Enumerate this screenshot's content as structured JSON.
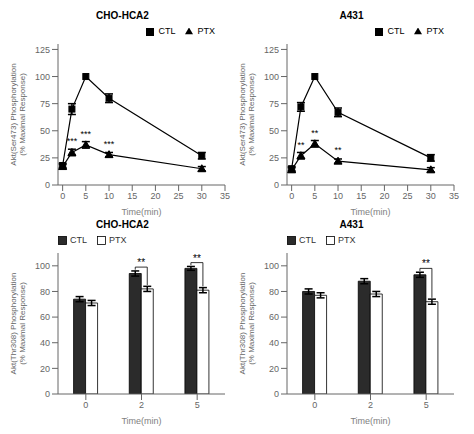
{
  "chart_data": [
    {
      "type": "line",
      "title": "CHO-HCA2",
      "xlabel": "Time(min)",
      "ylabel": "Akt(Ser473) Phosphorylation\n(% Maximal Response)",
      "x": [
        0,
        2,
        5,
        10,
        30
      ],
      "series": [
        {
          "name": "CTL",
          "color": "#000000",
          "marker": "square",
          "values": [
            18,
            70,
            100,
            80,
            27
          ],
          "errors": [
            2,
            5,
            0,
            4,
            3
          ]
        },
        {
          "name": "PTX",
          "color": "#000000",
          "marker": "triangle",
          "values": [
            17,
            30,
            37,
            28,
            15
          ],
          "errors": [
            2,
            3,
            3,
            2,
            2
          ]
        }
      ],
      "annotations": [
        {
          "series": "PTX",
          "x": 2,
          "text": "***"
        },
        {
          "series": "PTX",
          "x": 5,
          "text": "***"
        },
        {
          "series": "PTX",
          "x": 10,
          "text": "***"
        }
      ],
      "xlim": [
        -1,
        35
      ],
      "ylim": [
        0,
        130
      ],
      "xticks": [
        0,
        5,
        10,
        15,
        20,
        25,
        30,
        35
      ],
      "yticks": [
        0,
        25,
        50,
        75,
        100,
        125
      ],
      "grid": false,
      "legend": "upper right"
    },
    {
      "type": "line",
      "title": "A431",
      "xlabel": "Time(min)",
      "ylabel": "Akt(Ser473) Phosphorylation\n(% Maximal Response)",
      "x": [
        0,
        2,
        5,
        10,
        30
      ],
      "series": [
        {
          "name": "CTL",
          "color": "#000000",
          "marker": "square",
          "values": [
            15,
            72,
            100,
            67,
            25
          ],
          "errors": [
            2,
            4,
            0,
            4,
            3
          ]
        },
        {
          "name": "PTX",
          "color": "#000000",
          "marker": "triangle",
          "values": [
            14,
            27,
            38,
            22,
            14
          ],
          "errors": [
            2,
            3,
            3,
            2,
            2
          ]
        }
      ],
      "annotations": [
        {
          "series": "PTX",
          "x": 2,
          "text": "**"
        },
        {
          "series": "PTX",
          "x": 5,
          "text": "**"
        },
        {
          "series": "PTX",
          "x": 10,
          "text": "**"
        }
      ],
      "xlim": [
        -1,
        35
      ],
      "ylim": [
        0,
        130
      ],
      "xticks": [
        0,
        5,
        10,
        15,
        20,
        25,
        30,
        35
      ],
      "yticks": [
        0,
        25,
        50,
        75,
        100,
        125
      ],
      "grid": false,
      "legend": "upper right"
    },
    {
      "type": "bar",
      "title": "CHO-HCA2",
      "xlabel": "Time(min)",
      "ylabel": "Akt(Thr308) Phosphorylation\n(% Maximal Response)",
      "categories": [
        "0",
        "2",
        "5"
      ],
      "series": [
        {
          "name": "CTL",
          "color": "#2b2b2b",
          "values": [
            74,
            94,
            98
          ],
          "errors": [
            2,
            2,
            1.5
          ]
        },
        {
          "name": "PTX",
          "color": "#ffffff",
          "values": [
            71,
            82,
            81
          ],
          "errors": [
            2,
            2,
            2
          ]
        }
      ],
      "annotations": [
        {
          "category": "2",
          "text": "**"
        },
        {
          "category": "5",
          "text": "**"
        }
      ],
      "ylim": [
        0,
        110
      ],
      "yticks": [
        0,
        20,
        40,
        60,
        80,
        100
      ],
      "grid": false,
      "legend": "upper left"
    },
    {
      "type": "bar",
      "title": "A431",
      "xlabel": "Time(min)",
      "ylabel": "Akt(Thr308) Phosphorylation\n(% Maximal Response)",
      "categories": [
        "0",
        "2",
        "5"
      ],
      "series": [
        {
          "name": "CTL",
          "color": "#2b2b2b",
          "values": [
            80,
            88,
            93
          ],
          "errors": [
            2,
            2,
            2
          ]
        },
        {
          "name": "PTX",
          "color": "#ffffff",
          "values": [
            77,
            78,
            72
          ],
          "errors": [
            2,
            2,
            2
          ]
        }
      ],
      "annotations": [
        {
          "category": "5",
          "text": "**"
        }
      ],
      "ylim": [
        0,
        110
      ],
      "yticks": [
        0,
        20,
        40,
        60,
        80,
        100
      ],
      "grid": false,
      "legend": "upper left"
    }
  ]
}
